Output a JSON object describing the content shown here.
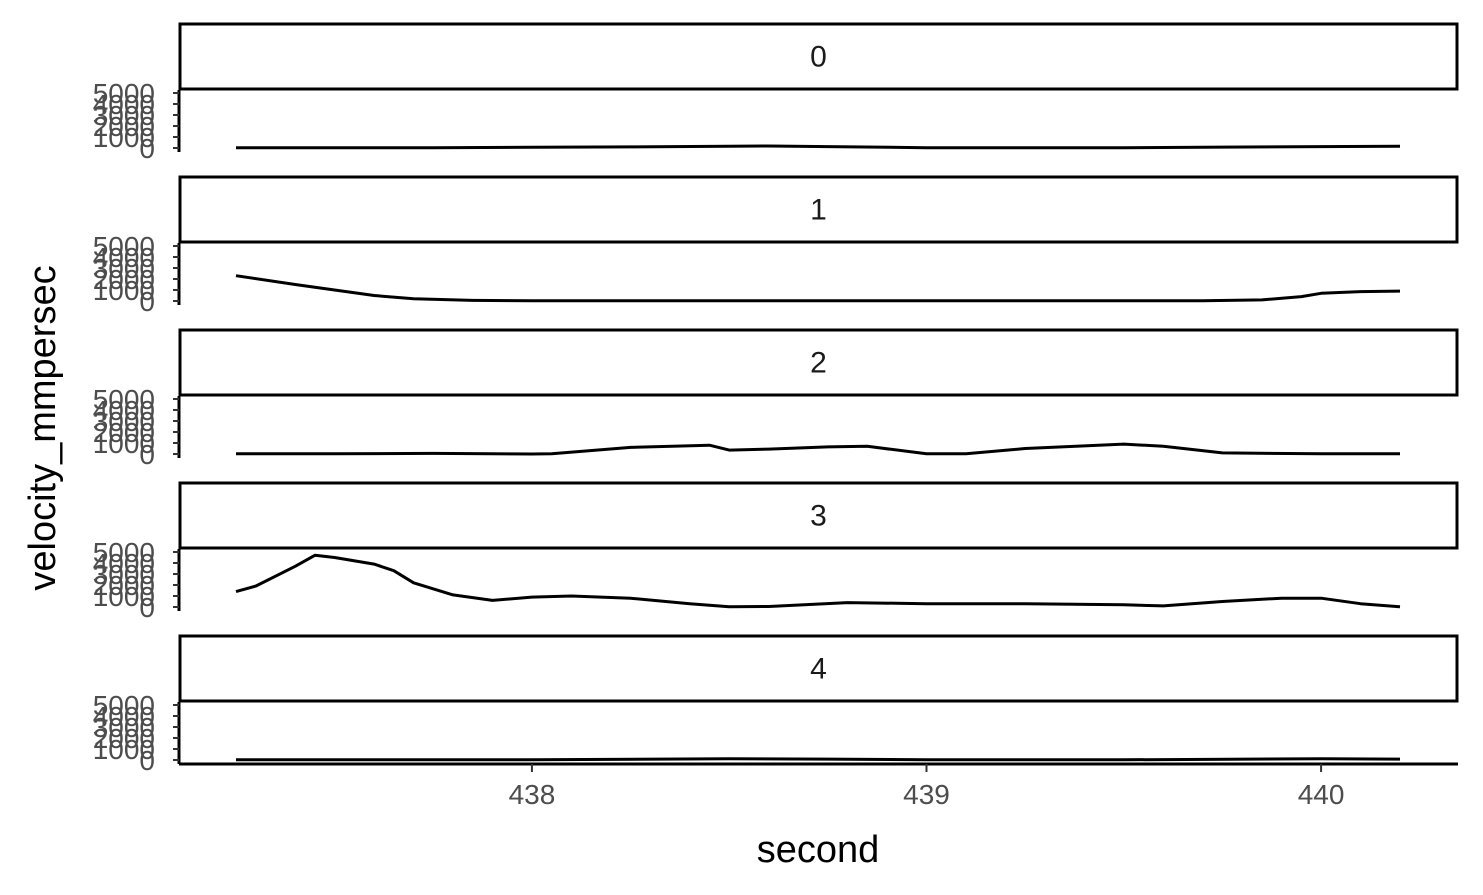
{
  "chart_data": {
    "type": "line",
    "xlabel": "second",
    "ylabel": "velocity_mmpersec",
    "xlim": [
      437.1,
      440.35
    ],
    "ylim": [
      0,
      5000
    ],
    "x_ticks": [
      438,
      439,
      440
    ],
    "x_tick_labels": [
      "438",
      "439",
      "440"
    ],
    "y_ticks": [
      0,
      1000,
      2000,
      3000,
      4000,
      5000
    ],
    "y_tick_labels": [
      "0",
      "1000",
      "2000",
      "3000",
      "4000",
      "5000"
    ],
    "grid": false,
    "legend": "none",
    "line_color": "#000000",
    "panels": [
      {
        "label": "0",
        "x": [
          437.25,
          437.5,
          437.75,
          438.0,
          438.25,
          438.5,
          438.6,
          438.75,
          439.0,
          439.25,
          439.5,
          439.75,
          440.0,
          440.2
        ],
        "y": [
          20,
          20,
          20,
          70,
          100,
          160,
          180,
          130,
          30,
          20,
          20,
          80,
          130,
          150
        ]
      },
      {
        "label": "1",
        "x": [
          437.25,
          437.4,
          437.5,
          437.6,
          437.7,
          437.85,
          438.0,
          438.5,
          439.0,
          439.5,
          439.7,
          439.85,
          439.95,
          440.0,
          440.1,
          440.2
        ],
        "y": [
          2300,
          1500,
          1000,
          500,
          200,
          50,
          20,
          20,
          20,
          20,
          30,
          100,
          400,
          700,
          850,
          900
        ]
      },
      {
        "label": "2",
        "x": [
          437.25,
          437.5,
          437.75,
          438.0,
          438.05,
          438.25,
          438.45,
          438.5,
          438.6,
          438.75,
          438.85,
          439.0,
          439.1,
          439.25,
          439.5,
          439.6,
          439.75,
          440.0,
          440.2
        ],
        "y": [
          20,
          20,
          50,
          0,
          20,
          600,
          800,
          350,
          450,
          650,
          700,
          20,
          20,
          500,
          900,
          700,
          100,
          20,
          20
        ]
      },
      {
        "label": "3",
        "x": [
          437.25,
          437.3,
          437.4,
          437.45,
          437.5,
          437.6,
          437.65,
          437.7,
          437.8,
          437.9,
          438.0,
          438.1,
          438.25,
          438.4,
          438.5,
          438.6,
          438.8,
          439.0,
          439.25,
          439.5,
          439.6,
          439.75,
          439.9,
          440.0,
          440.1,
          440.2
        ],
        "y": [
          1400,
          1900,
          3700,
          4700,
          4500,
          3900,
          3300,
          2200,
          1100,
          600,
          900,
          1000,
          800,
          300,
          20,
          50,
          400,
          300,
          300,
          200,
          100,
          500,
          800,
          800,
          300,
          20
        ]
      },
      {
        "label": "4",
        "x": [
          437.25,
          437.5,
          438.0,
          438.5,
          438.75,
          439.0,
          439.5,
          440.0,
          440.2
        ],
        "y": [
          20,
          20,
          20,
          120,
          80,
          30,
          20,
          120,
          80
        ]
      }
    ]
  }
}
